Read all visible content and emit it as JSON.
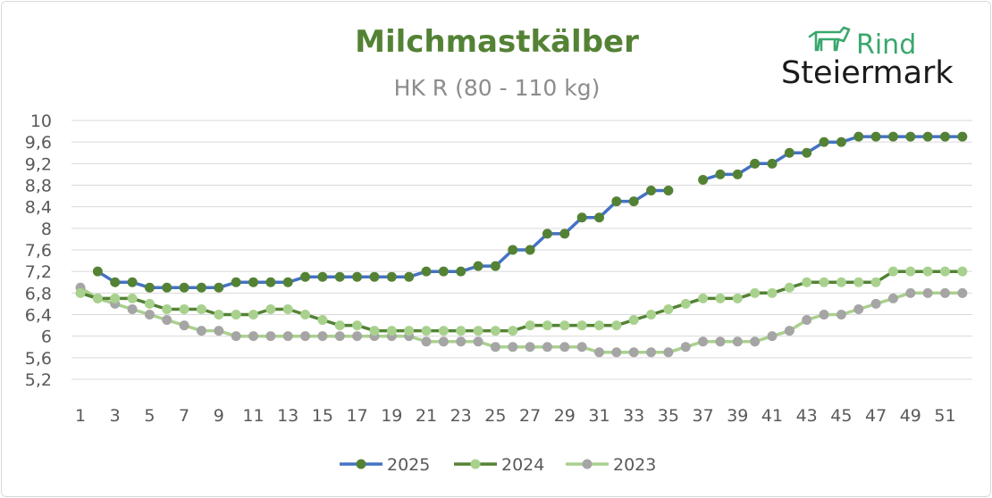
{
  "logo": {
    "line1": "Rind",
    "line2": "Steiermark",
    "icon": "cow-icon",
    "color": "#3aa76d"
  },
  "chart_data": {
    "type": "line",
    "title": "Milchmastkälber",
    "subtitle": "HK R (80 - 110 kg)",
    "xlabel": "",
    "ylabel": "",
    "title_color": "#548235",
    "x": [
      1,
      2,
      3,
      4,
      5,
      6,
      7,
      8,
      9,
      10,
      11,
      12,
      13,
      14,
      15,
      16,
      17,
      18,
      19,
      20,
      21,
      22,
      23,
      24,
      25,
      26,
      27,
      28,
      29,
      30,
      31,
      32,
      33,
      34,
      35,
      36,
      37,
      38,
      39,
      40,
      41,
      42,
      43,
      44,
      45,
      46,
      47,
      48,
      49,
      50,
      51,
      52
    ],
    "x_tick_labels": [
      "1",
      "3",
      "5",
      "7",
      "9",
      "11",
      "13",
      "15",
      "17",
      "19",
      "21",
      "23",
      "25",
      "27",
      "29",
      "31",
      "33",
      "35",
      "37",
      "39",
      "41",
      "43",
      "45",
      "47",
      "49",
      "51"
    ],
    "y_tick_labels": [
      "5,2",
      "5,6",
      "6",
      "6,4",
      "6,8",
      "7,2",
      "7,6",
      "8",
      "8,4",
      "8,8",
      "9,2",
      "9,6",
      "10"
    ],
    "ylim": [
      5.2,
      10
    ],
    "y_ticks": [
      5.2,
      5.6,
      6.0,
      6.4,
      6.8,
      7.2,
      7.6,
      8.0,
      8.4,
      8.8,
      9.2,
      9.6,
      10.0
    ],
    "grid": true,
    "legend_position": "bottom",
    "series": [
      {
        "name": "2025",
        "line_color": "#4472c4",
        "marker_color": "#548235",
        "values": [
          null,
          7.2,
          7.0,
          7.0,
          6.9,
          6.9,
          6.9,
          6.9,
          6.9,
          7.0,
          7.0,
          7.0,
          7.0,
          7.1,
          7.1,
          7.1,
          7.1,
          7.1,
          7.1,
          7.1,
          7.2,
          7.2,
          7.2,
          7.3,
          7.3,
          7.6,
          7.6,
          7.9,
          7.9,
          8.2,
          8.2,
          8.5,
          8.5,
          8.7,
          8.7,
          null,
          8.9,
          9.0,
          9.0,
          9.2,
          9.2,
          9.4,
          9.4,
          9.6,
          9.6,
          9.7,
          9.7,
          9.7,
          9.7,
          9.7,
          9.7,
          9.7
        ]
      },
      {
        "name": "2024",
        "line_color": "#548235",
        "marker_color": "#a9d18e",
        "values": [
          6.8,
          6.7,
          6.7,
          6.7,
          6.6,
          6.5,
          6.5,
          6.5,
          6.4,
          6.4,
          6.4,
          6.5,
          6.5,
          6.4,
          6.3,
          6.2,
          6.2,
          6.1,
          6.1,
          6.1,
          6.1,
          6.1,
          6.1,
          6.1,
          6.1,
          6.1,
          6.2,
          6.2,
          6.2,
          6.2,
          6.2,
          6.2,
          6.3,
          6.4,
          6.5,
          6.6,
          6.7,
          6.7,
          6.7,
          6.8,
          6.8,
          6.9,
          7.0,
          7.0,
          7.0,
          7.0,
          7.0,
          7.2,
          7.2,
          7.2,
          7.2,
          7.2
        ]
      },
      {
        "name": "2023",
        "line_color": "#a9d18e",
        "marker_color": "#a5a5a5",
        "values": [
          6.9,
          6.7,
          6.6,
          6.5,
          6.4,
          6.3,
          6.2,
          6.1,
          6.1,
          6.0,
          6.0,
          6.0,
          6.0,
          6.0,
          6.0,
          6.0,
          6.0,
          6.0,
          6.0,
          6.0,
          5.9,
          5.9,
          5.9,
          5.9,
          5.8,
          5.8,
          5.8,
          5.8,
          5.8,
          5.8,
          5.7,
          5.7,
          5.7,
          5.7,
          5.7,
          5.8,
          5.9,
          5.9,
          5.9,
          5.9,
          6.0,
          6.1,
          6.3,
          6.4,
          6.4,
          6.5,
          6.6,
          6.7,
          6.8,
          6.8,
          6.8,
          6.8
        ]
      }
    ]
  }
}
